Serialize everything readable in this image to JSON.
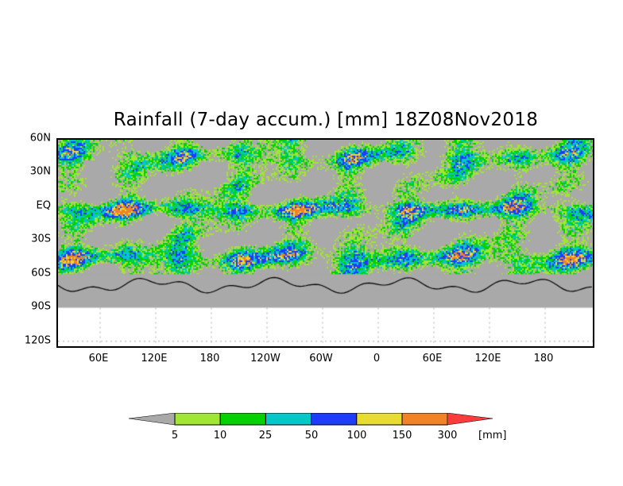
{
  "title": "Rainfall (7-day accum.) [mm] 18Z08Nov2018",
  "lat_labels": [
    "60N",
    "30N",
    "EQ",
    "30S",
    "60S",
    "90S",
    "120S"
  ],
  "lon_labels": [
    "60E",
    "120E",
    "180",
    "120W",
    "60W",
    "0",
    "60E",
    "120E",
    "180"
  ],
  "colorbar": {
    "levels": [
      "5",
      "10",
      "25",
      "50",
      "100",
      "150",
      "300"
    ],
    "unit": "[mm]",
    "colors": [
      "#a9a9a9",
      "#a0e632",
      "#00d200",
      "#00c8c8",
      "#1e3cff",
      "#e6dc32",
      "#f08228",
      "#fa3c3c"
    ]
  }
}
